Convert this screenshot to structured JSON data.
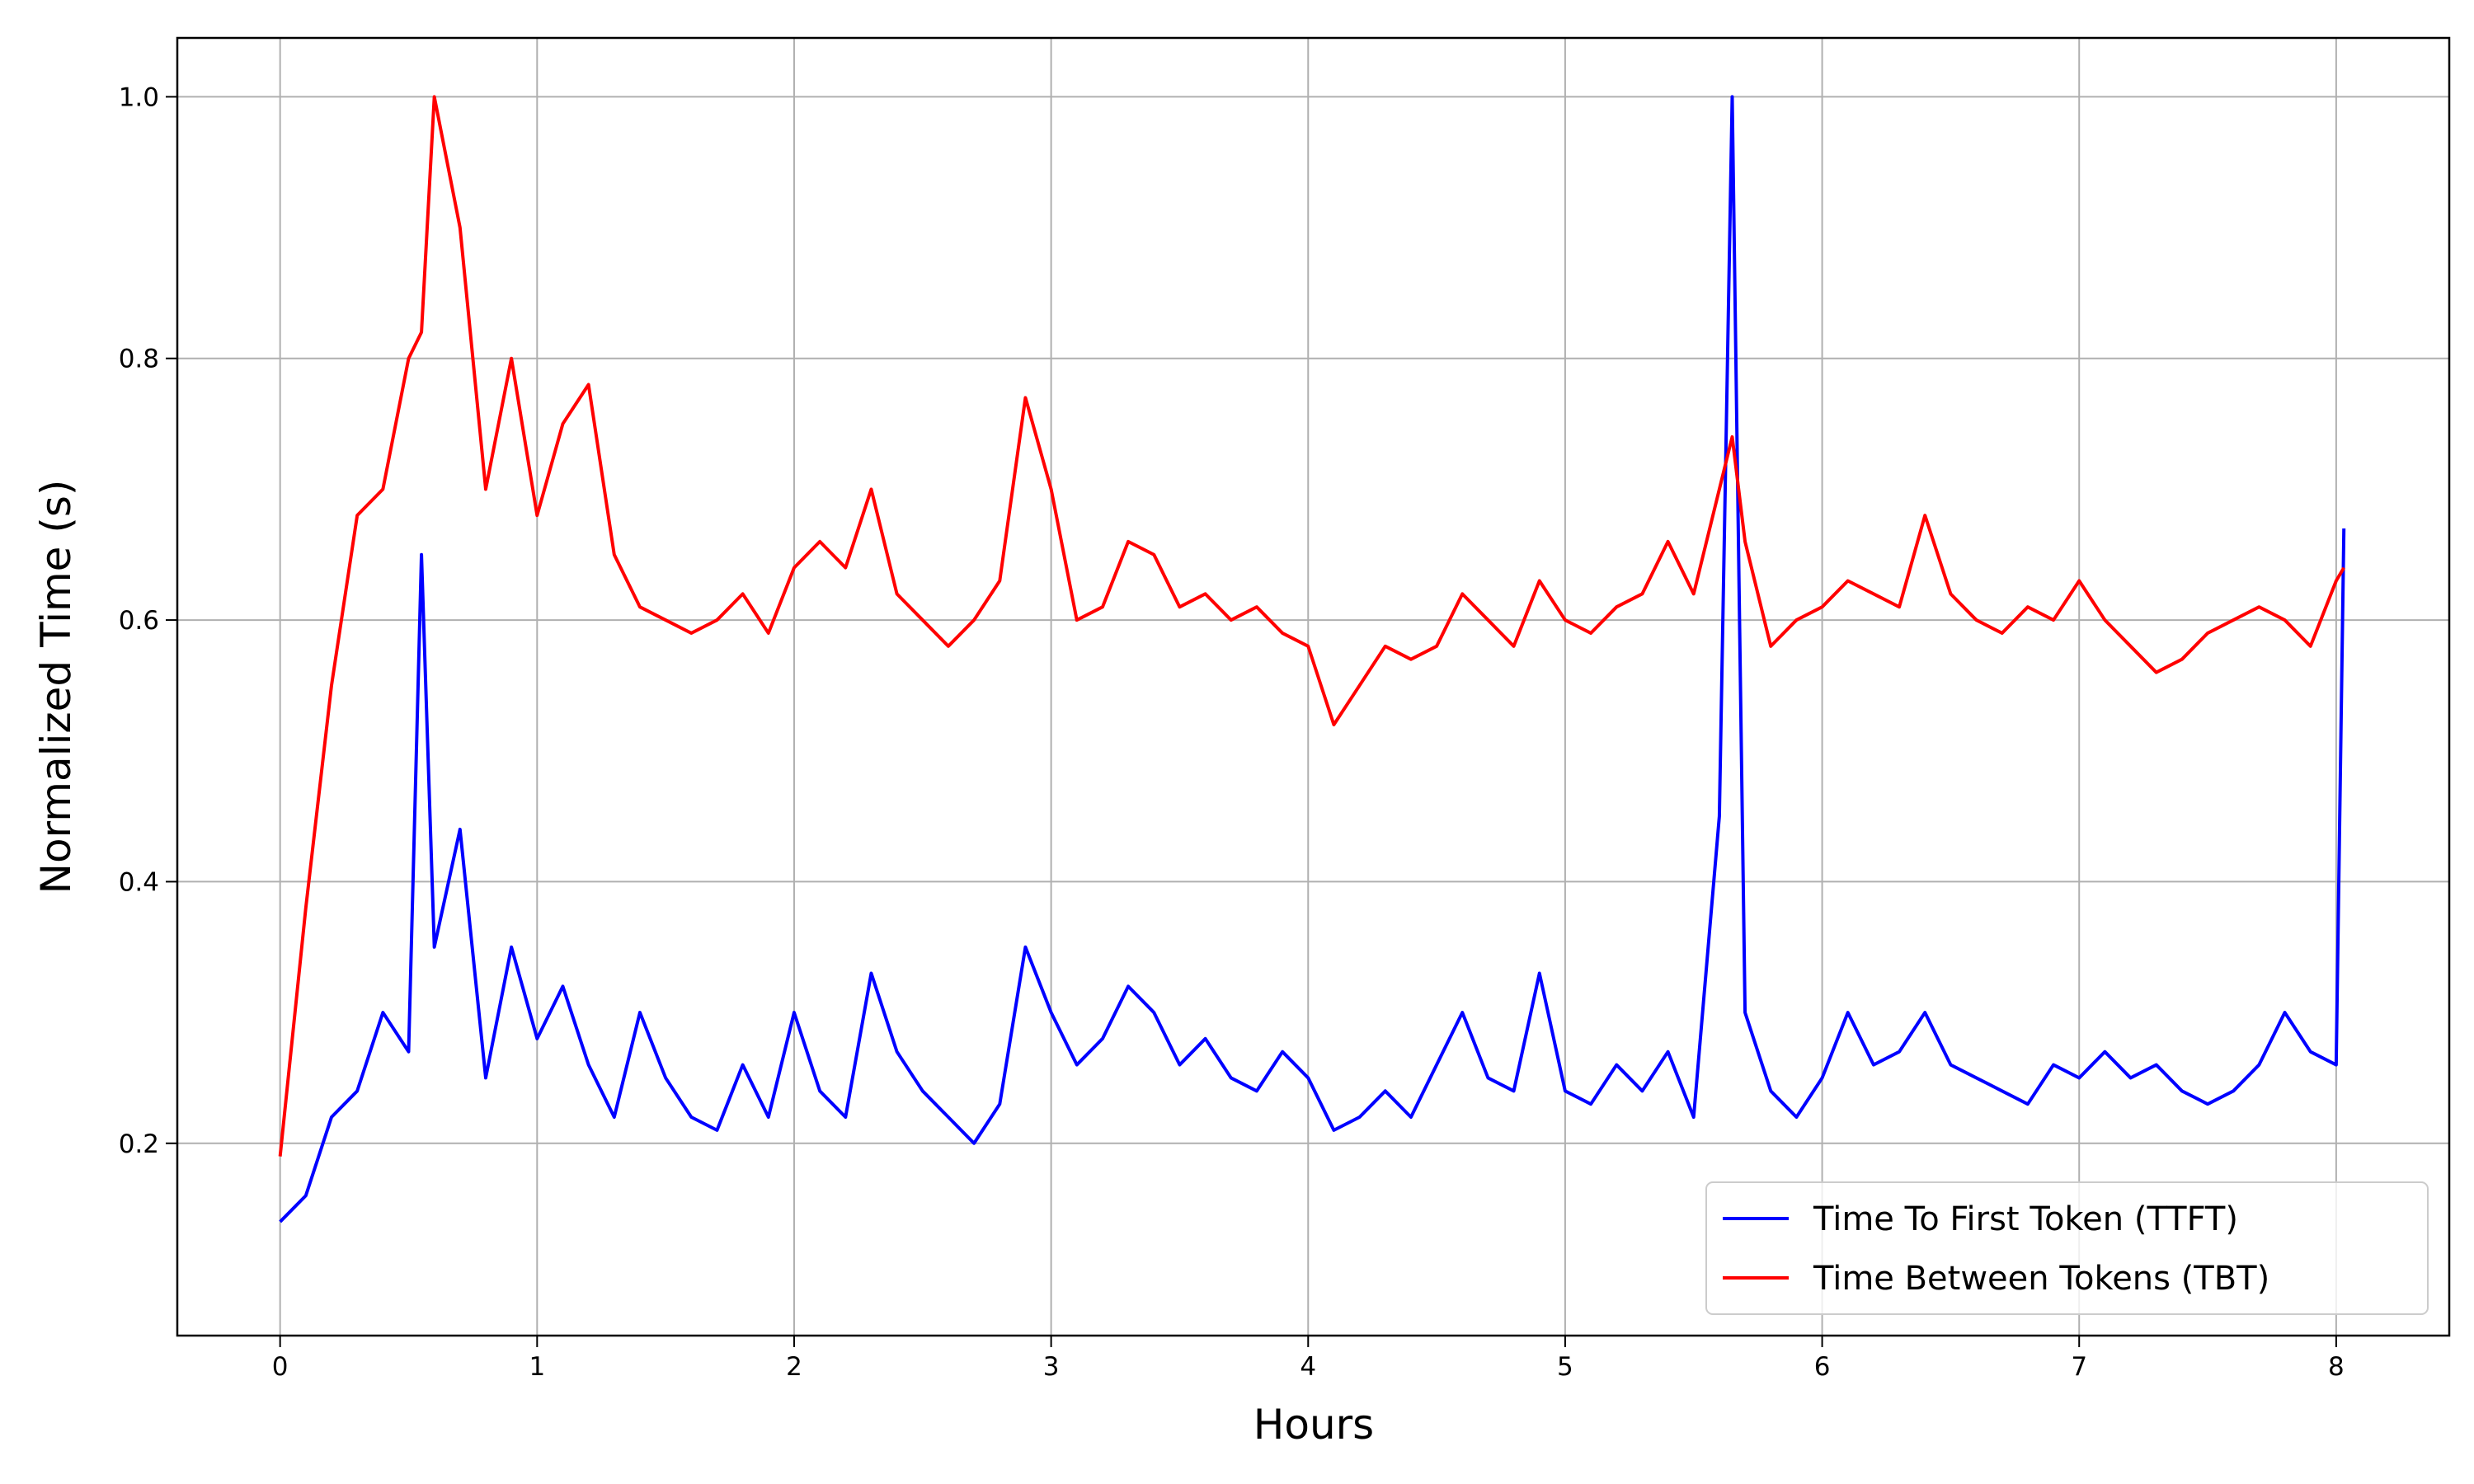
{
  "chart_data": {
    "type": "line",
    "xlabel": "Hours",
    "ylabel": "Normalized Time (s)",
    "x": [
      0,
      0.1,
      0.2,
      0.3,
      0.4,
      0.5,
      0.55,
      0.6,
      0.7,
      0.8,
      0.9,
      1.0,
      1.1,
      1.2,
      1.3,
      1.4,
      1.5,
      1.6,
      1.7,
      1.8,
      1.9,
      2.0,
      2.1,
      2.2,
      2.3,
      2.4,
      2.5,
      2.6,
      2.7,
      2.8,
      2.9,
      3.0,
      3.1,
      3.2,
      3.3,
      3.4,
      3.5,
      3.6,
      3.7,
      3.8,
      3.9,
      4.0,
      4.1,
      4.2,
      4.3,
      4.4,
      4.5,
      4.6,
      4.7,
      4.8,
      4.9,
      5.0,
      5.1,
      5.2,
      5.3,
      5.4,
      5.5,
      5.6,
      5.65,
      5.7,
      5.8,
      5.9,
      6.0,
      6.1,
      6.2,
      6.3,
      6.4,
      6.5,
      6.6,
      6.7,
      6.8,
      6.9,
      7.0,
      7.1,
      7.2,
      7.3,
      7.4,
      7.5,
      7.6,
      7.7,
      7.8,
      7.9,
      8.0,
      8.03
    ],
    "series": [
      {
        "name": "Time To First Token (TTFT)",
        "color": "#0000ff",
        "values": [
          0.14,
          0.16,
          0.22,
          0.24,
          0.3,
          0.27,
          0.65,
          0.35,
          0.44,
          0.25,
          0.35,
          0.28,
          0.32,
          0.26,
          0.22,
          0.3,
          0.25,
          0.22,
          0.21,
          0.26,
          0.22,
          0.3,
          0.24,
          0.22,
          0.33,
          0.27,
          0.24,
          0.22,
          0.2,
          0.23,
          0.35,
          0.3,
          0.26,
          0.28,
          0.32,
          0.3,
          0.26,
          0.28,
          0.25,
          0.24,
          0.27,
          0.25,
          0.21,
          0.22,
          0.24,
          0.22,
          0.26,
          0.3,
          0.25,
          0.24,
          0.33,
          0.24,
          0.23,
          0.26,
          0.24,
          0.27,
          0.22,
          0.45,
          1.0,
          0.3,
          0.24,
          0.22,
          0.25,
          0.3,
          0.26,
          0.27,
          0.3,
          0.26,
          0.25,
          0.24,
          0.23,
          0.26,
          0.25,
          0.27,
          0.25,
          0.26,
          0.24,
          0.23,
          0.24,
          0.26,
          0.3,
          0.27,
          0.26,
          0.67
        ]
      },
      {
        "name": "Time Between Tokens (TBT)",
        "color": "#ff0000",
        "values": [
          0.19,
          0.38,
          0.55,
          0.68,
          0.7,
          0.8,
          0.82,
          1.0,
          0.9,
          0.7,
          0.8,
          0.68,
          0.75,
          0.78,
          0.65,
          0.61,
          0.6,
          0.59,
          0.6,
          0.62,
          0.59,
          0.64,
          0.66,
          0.64,
          0.7,
          0.62,
          0.6,
          0.58,
          0.6,
          0.63,
          0.77,
          0.7,
          0.6,
          0.61,
          0.66,
          0.65,
          0.61,
          0.62,
          0.6,
          0.61,
          0.59,
          0.58,
          0.52,
          0.55,
          0.58,
          0.57,
          0.58,
          0.62,
          0.6,
          0.58,
          0.63,
          0.6,
          0.59,
          0.61,
          0.62,
          0.66,
          0.62,
          0.7,
          0.74,
          0.66,
          0.58,
          0.6,
          0.61,
          0.63,
          0.62,
          0.61,
          0.68,
          0.62,
          0.6,
          0.59,
          0.61,
          0.6,
          0.63,
          0.6,
          0.58,
          0.56,
          0.57,
          0.59,
          0.6,
          0.61,
          0.6,
          0.58,
          0.63,
          0.64
        ]
      }
    ],
    "xlim": [
      -0.4,
      8.44
    ],
    "ylim": [
      0.053,
      1.045
    ],
    "xticks": [
      0,
      1,
      2,
      3,
      4,
      5,
      6,
      7,
      8
    ],
    "yticks": [
      0.2,
      0.4,
      0.6,
      0.8,
      {
        "value": 1,
        "label": "1.0"
      }
    ],
    "grid": true,
    "legend": "lower right"
  }
}
